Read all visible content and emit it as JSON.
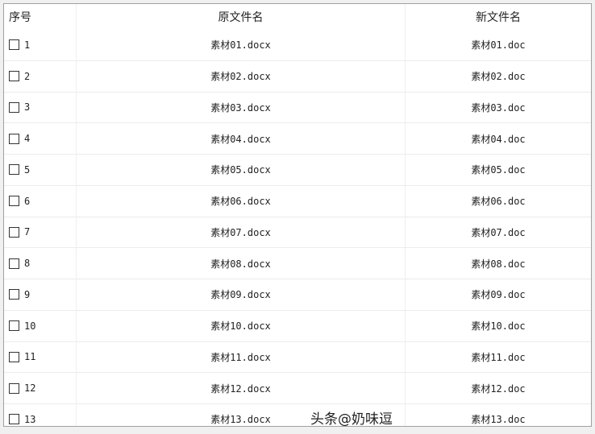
{
  "table": {
    "headers": [
      "序号",
      "原文件名",
      "新文件名"
    ],
    "rows": [
      {
        "index": "1",
        "original": "素材01.docx",
        "new": "素材01.doc",
        "checked": false
      },
      {
        "index": "2",
        "original": "素材02.docx",
        "new": "素材02.doc",
        "checked": false
      },
      {
        "index": "3",
        "original": "素材03.docx",
        "new": "素材03.doc",
        "checked": false
      },
      {
        "index": "4",
        "original": "素材04.docx",
        "new": "素材04.doc",
        "checked": false
      },
      {
        "index": "5",
        "original": "素材05.docx",
        "new": "素材05.doc",
        "checked": false
      },
      {
        "index": "6",
        "original": "素材06.docx",
        "new": "素材06.doc",
        "checked": false
      },
      {
        "index": "7",
        "original": "素材07.docx",
        "new": "素材07.doc",
        "checked": false
      },
      {
        "index": "8",
        "original": "素材08.docx",
        "new": "素材08.doc",
        "checked": false
      },
      {
        "index": "9",
        "original": "素材09.docx",
        "new": "素材09.doc",
        "checked": false
      },
      {
        "index": "10",
        "original": "素材10.docx",
        "new": "素材10.doc",
        "checked": false
      },
      {
        "index": "11",
        "original": "素材11.docx",
        "new": "素材11.doc",
        "checked": false
      },
      {
        "index": "12",
        "original": "素材12.docx",
        "new": "素材12.doc",
        "checked": false
      },
      {
        "index": "13",
        "original": "素材13.docx",
        "new": "素材13.doc",
        "checked": false
      }
    ]
  },
  "watermark": "头条@奶味逗"
}
